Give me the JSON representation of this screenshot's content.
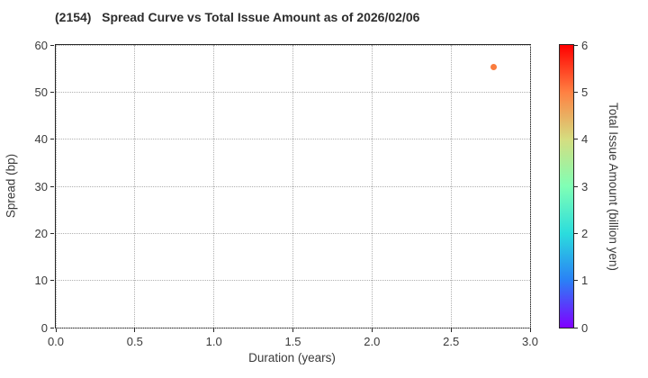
{
  "figure": {
    "title": "(2154)   Spread Curve vs Total Issue Amount as of 2026/02/06"
  },
  "chart_data": {
    "type": "scatter",
    "title": "(2154)   Spread Curve vs Total Issue Amount as of 2026/02/06",
    "xlabel": "Duration (years)",
    "ylabel": "Spread (bp)",
    "xlim": [
      0.0,
      3.0
    ],
    "ylim": [
      0,
      60
    ],
    "xticks": [
      0.0,
      0.5,
      1.0,
      1.5,
      2.0,
      2.5,
      3.0
    ],
    "xtick_labels": [
      "0.0",
      "0.5",
      "1.0",
      "1.5",
      "2.0",
      "2.5",
      "3.0"
    ],
    "yticks": [
      0,
      10,
      20,
      30,
      40,
      50,
      60
    ],
    "ytick_labels": [
      "0",
      "10",
      "20",
      "30",
      "40",
      "50",
      "60"
    ],
    "grid": true,
    "grid_style": "dotted",
    "legend": "none",
    "points": [
      {
        "x": 2.77,
        "y": 55.4,
        "value": 5.0,
        "color": "#fa7c3e"
      }
    ],
    "colorbar": {
      "label": "Total Issue Amount (billion yen)",
      "min": 0,
      "max": 6,
      "ticks": [
        0,
        1,
        2,
        3,
        4,
        5,
        6
      ],
      "tick_labels": [
        "0",
        "1",
        "2",
        "3",
        "4",
        "5",
        "6"
      ],
      "colormap": "rainbow",
      "gradient_bottom_to_top": [
        "#8000ff",
        "#2a80f6",
        "#2bdddd",
        "#80ffb5",
        "#d5dd80",
        "#ff8042",
        "#ff0000"
      ]
    }
  },
  "colors": {
    "background": "#ffffff",
    "spine": "#262626",
    "grid": "#b0b0b0",
    "text": "#3a3a3a",
    "title_text": "#2d2d2d",
    "point": "#fa7c3e"
  }
}
